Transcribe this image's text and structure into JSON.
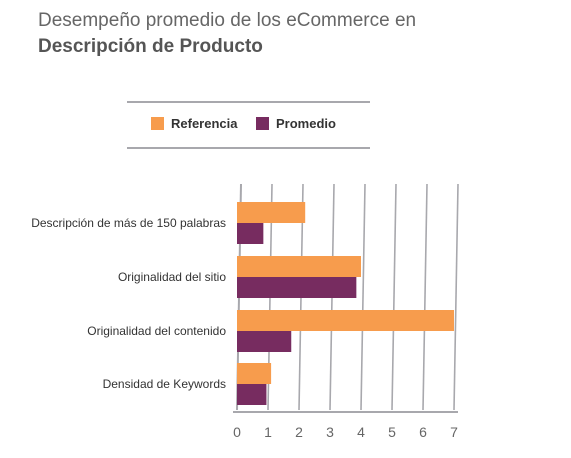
{
  "title": {
    "line1": "Desempeño promedio de los eCommerce en",
    "line2": "Descripción de Producto"
  },
  "colors": {
    "referencia": "#f79c4d",
    "promedio": "#772c60",
    "grid": "#a8a8ad"
  },
  "chart_data": {
    "type": "bar",
    "orientation": "horizontal",
    "title": "Desempeño promedio de los eCommerce en Descripción de Producto",
    "categories": [
      "Descripción de más de 150 palabras",
      "Originalidad del sitio",
      "Originalidad del contenido",
      "Densidad de Keywords"
    ],
    "series": [
      {
        "name": "Referencia",
        "values": [
          2.2,
          4.0,
          7.0,
          1.1
        ]
      },
      {
        "name": "Promedio",
        "values": [
          0.85,
          3.85,
          1.75,
          0.95
        ]
      }
    ],
    "xlim": [
      0,
      7
    ],
    "xticks": [
      "0",
      "1",
      "2",
      "3",
      "4",
      "5",
      "6",
      "7"
    ],
    "grid": true,
    "legend": "top"
  }
}
